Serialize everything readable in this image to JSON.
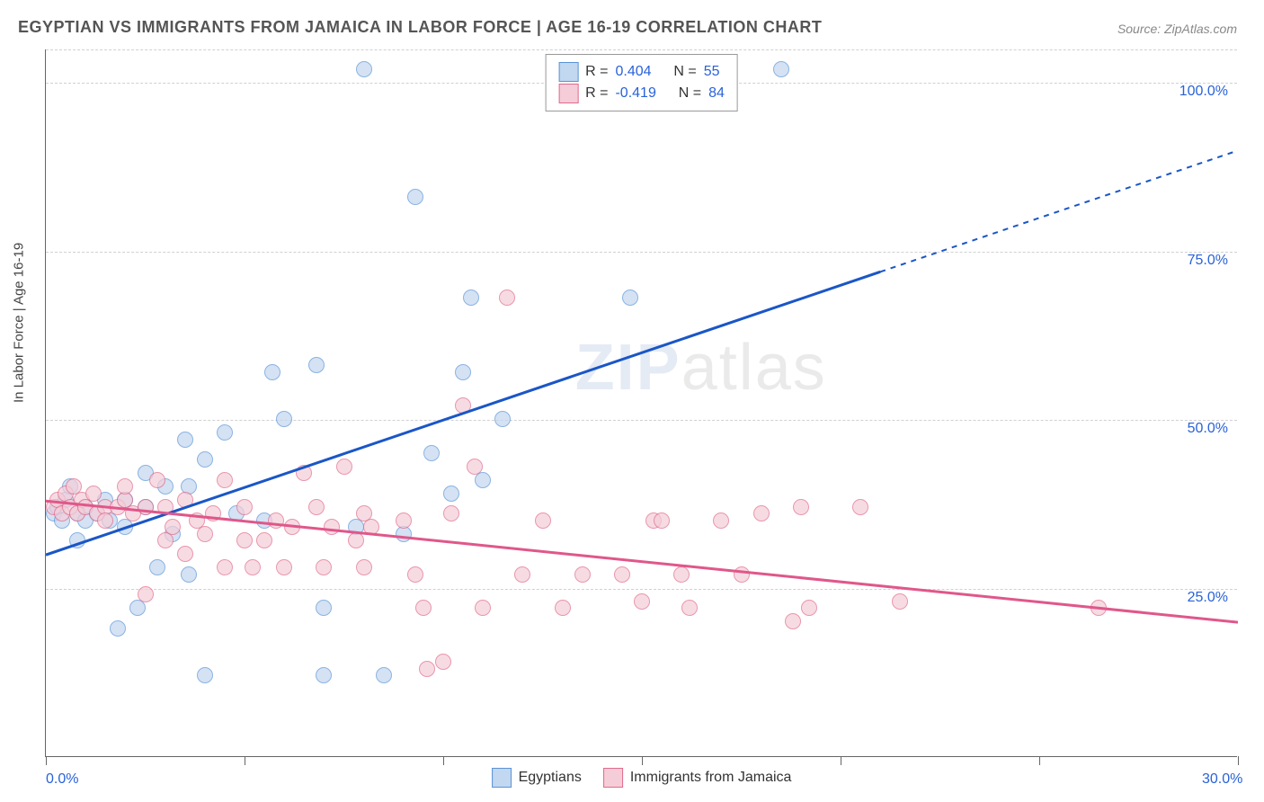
{
  "title": "EGYPTIAN VS IMMIGRANTS FROM JAMAICA IN LABOR FORCE | AGE 16-19 CORRELATION CHART",
  "source": "Source: ZipAtlas.com",
  "ylabel": "In Labor Force | Age 16-19",
  "watermark_primary": "ZIP",
  "watermark_secondary": "atlas",
  "chart": {
    "type": "scatter",
    "xlim": [
      0,
      30
    ],
    "ylim": [
      0,
      105
    ],
    "xticks": [
      0,
      5,
      10,
      15,
      20,
      25,
      30
    ],
    "xtick_labels": {
      "0": "0.0%",
      "30": "30.0%"
    },
    "yticks": [
      25,
      50,
      75,
      100
    ],
    "ytick_labels": {
      "25": "25.0%",
      "50": "50.0%",
      "75": "75.0%",
      "100": "100.0%"
    },
    "grid_color": "#d8d8d8",
    "background_color": "#ffffff",
    "marker_radius": 9,
    "series": [
      {
        "name": "Egyptians",
        "color_fill": "#c2d7f0",
        "color_stroke": "#5a93d6",
        "R": "0.404",
        "N": "55",
        "trend": {
          "x1": 0,
          "y1": 30,
          "x2": 21,
          "y2": 72,
          "x2_ext": 30,
          "y2_ext": 90,
          "color": "#1a56c7",
          "width": 3
        },
        "points": [
          [
            0.2,
            36
          ],
          [
            0.3,
            37
          ],
          [
            0.4,
            35
          ],
          [
            0.5,
            38
          ],
          [
            0.6,
            40
          ],
          [
            0.8,
            32
          ],
          [
            0.8,
            36
          ],
          [
            1.0,
            37
          ],
          [
            1.0,
            35
          ],
          [
            1.3,
            36
          ],
          [
            1.5,
            38
          ],
          [
            1.6,
            35
          ],
          [
            1.8,
            19
          ],
          [
            2.0,
            38
          ],
          [
            2.0,
            34
          ],
          [
            2.3,
            22
          ],
          [
            2.5,
            37
          ],
          [
            2.5,
            42
          ],
          [
            2.8,
            28
          ],
          [
            3.0,
            40
          ],
          [
            3.2,
            33
          ],
          [
            3.5,
            47
          ],
          [
            3.6,
            40
          ],
          [
            3.6,
            27
          ],
          [
            4.0,
            12
          ],
          [
            4.0,
            44
          ],
          [
            4.5,
            48
          ],
          [
            4.8,
            36
          ],
          [
            5.5,
            35
          ],
          [
            5.7,
            57
          ],
          [
            6.0,
            50
          ],
          [
            6.8,
            58
          ],
          [
            7.0,
            22
          ],
          [
            7.0,
            12
          ],
          [
            7.8,
            34
          ],
          [
            8.0,
            102
          ],
          [
            8.5,
            12
          ],
          [
            9.0,
            33
          ],
          [
            9.3,
            83
          ],
          [
            9.7,
            45
          ],
          [
            10.2,
            39
          ],
          [
            10.5,
            57
          ],
          [
            10.7,
            68
          ],
          [
            11.0,
            41
          ],
          [
            11.5,
            50
          ],
          [
            14.7,
            68
          ],
          [
            14.8,
            102
          ],
          [
            18.5,
            102
          ]
        ]
      },
      {
        "name": "Immigrants from Jamaica",
        "color_fill": "#f5cdd8",
        "color_stroke": "#e06a8a",
        "R": "-0.419",
        "N": "84",
        "trend": {
          "x1": 0,
          "y1": 38,
          "x2": 30,
          "y2": 20,
          "color": "#e0578a",
          "width": 3
        },
        "points": [
          [
            0.2,
            37
          ],
          [
            0.3,
            38
          ],
          [
            0.4,
            36
          ],
          [
            0.5,
            39
          ],
          [
            0.6,
            37
          ],
          [
            0.7,
            40
          ],
          [
            0.8,
            36
          ],
          [
            0.9,
            38
          ],
          [
            1.0,
            37
          ],
          [
            1.2,
            39
          ],
          [
            1.3,
            36
          ],
          [
            1.5,
            37
          ],
          [
            1.5,
            35
          ],
          [
            1.8,
            37
          ],
          [
            2.0,
            38
          ],
          [
            2.0,
            40
          ],
          [
            2.2,
            36
          ],
          [
            2.5,
            24
          ],
          [
            2.5,
            37
          ],
          [
            2.8,
            41
          ],
          [
            3.0,
            32
          ],
          [
            3.0,
            37
          ],
          [
            3.2,
            34
          ],
          [
            3.5,
            38
          ],
          [
            3.5,
            30
          ],
          [
            3.8,
            35
          ],
          [
            4.0,
            33
          ],
          [
            4.2,
            36
          ],
          [
            4.5,
            41
          ],
          [
            4.5,
            28
          ],
          [
            5.0,
            32
          ],
          [
            5.0,
            37
          ],
          [
            5.2,
            28
          ],
          [
            5.5,
            32
          ],
          [
            5.8,
            35
          ],
          [
            6.0,
            28
          ],
          [
            6.2,
            34
          ],
          [
            6.5,
            42
          ],
          [
            6.8,
            37
          ],
          [
            7.0,
            28
          ],
          [
            7.2,
            34
          ],
          [
            7.5,
            43
          ],
          [
            7.8,
            32
          ],
          [
            8.0,
            28
          ],
          [
            8.0,
            36
          ],
          [
            8.2,
            34
          ],
          [
            9.0,
            35
          ],
          [
            9.3,
            27
          ],
          [
            9.5,
            22
          ],
          [
            9.6,
            13
          ],
          [
            10.0,
            14
          ],
          [
            10.2,
            36
          ],
          [
            10.5,
            52
          ],
          [
            10.8,
            43
          ],
          [
            11.0,
            22
          ],
          [
            11.6,
            68
          ],
          [
            12.0,
            27
          ],
          [
            12.5,
            35
          ],
          [
            13.0,
            22
          ],
          [
            13.5,
            27
          ],
          [
            14.5,
            27
          ],
          [
            15.0,
            23
          ],
          [
            15.3,
            35
          ],
          [
            15.5,
            35
          ],
          [
            16.0,
            27
          ],
          [
            16.2,
            22
          ],
          [
            17.0,
            35
          ],
          [
            17.5,
            27
          ],
          [
            18.0,
            36
          ],
          [
            18.8,
            20
          ],
          [
            19.0,
            37
          ],
          [
            19.2,
            22
          ],
          [
            20.5,
            37
          ],
          [
            21.5,
            23
          ],
          [
            26.5,
            22
          ]
        ]
      }
    ]
  },
  "stat_labels": {
    "R": "R =",
    "N": "N ="
  }
}
